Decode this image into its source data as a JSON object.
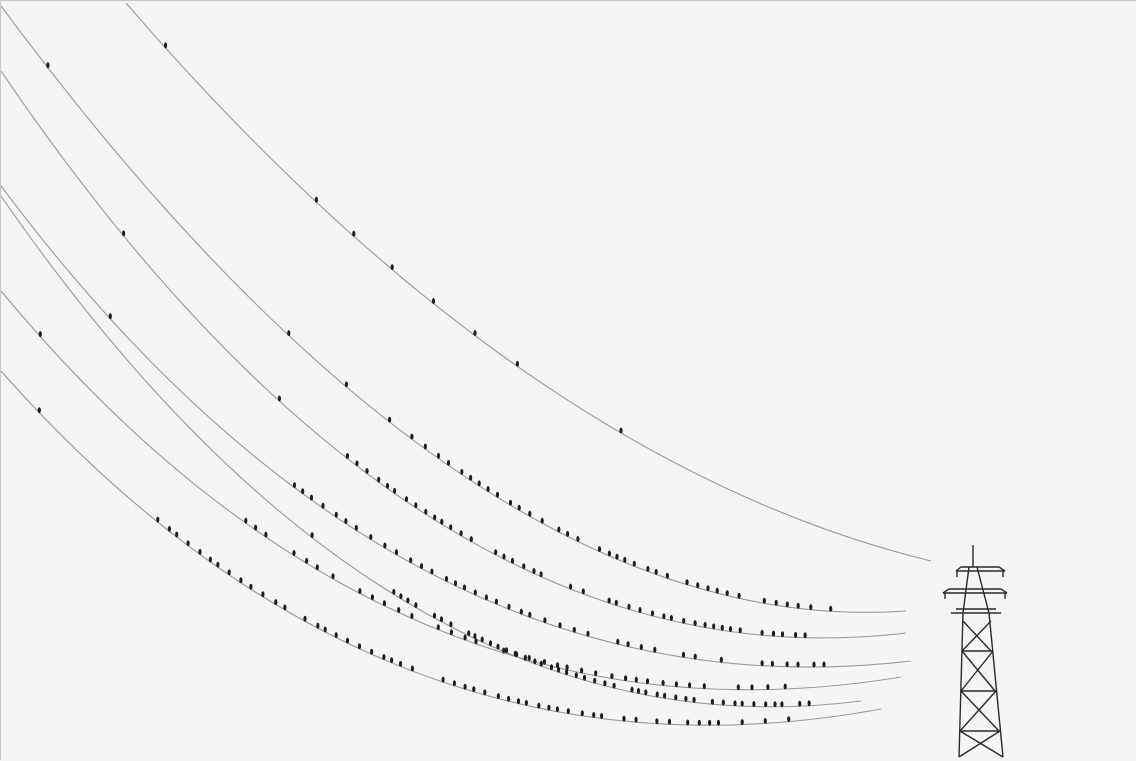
{
  "image": {
    "subject": "",
    "colors": {
      "sky": "#f5f5f5",
      "wire": "#9a9a9a",
      "bird": "#1e1e1e",
      "tower": "#2a2a2a"
    }
  }
}
